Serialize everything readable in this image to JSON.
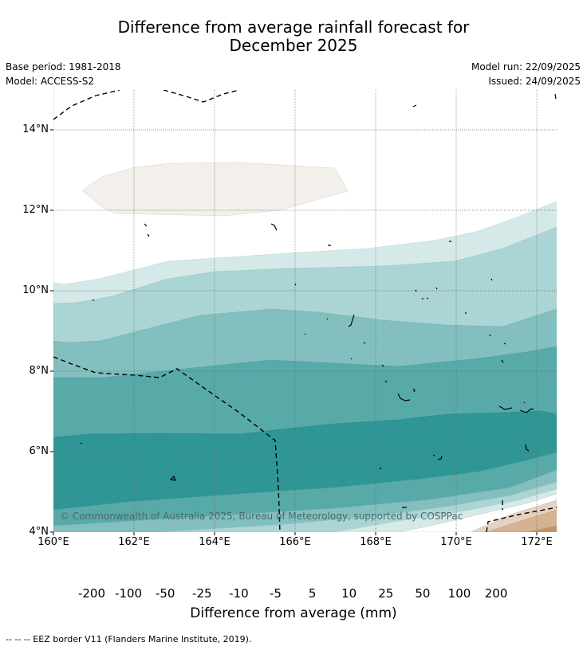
{
  "title_line1": "Difference from average rainfall forecast for",
  "title_line2": "December 2025",
  "base_period": "Base period: 1981-2018",
  "model": "Model: ACCESS-S2",
  "model_run": "Model run: 22/09/2025",
  "issued": "Issued: 24/09/2025",
  "lat_labels": [
    "14°N",
    "12°N",
    "10°N",
    "8°N",
    "6°N",
    "4°N"
  ],
  "lon_labels": [
    "160°E",
    "162°E",
    "164°E",
    "166°E",
    "168°E",
    "170°E",
    "172°E"
  ],
  "copyright": "© Commonwealth of Australia 2025, Bureau of Meteorology, supported by COSPPac",
  "colorbar": {
    "title": "Difference from average (mm)",
    "ticks": [
      "-200",
      "-100",
      "-50",
      "-25",
      "-10",
      "-5",
      "5",
      "10",
      "25",
      "50",
      "100",
      "200"
    ],
    "colors": [
      "#9c6430",
      "#b07840",
      "#c29468",
      "#d4b292",
      "#e5d2c0",
      "#f3efea",
      "#ffffff",
      "#d4e9e8",
      "#aad5d4",
      "#83bfbe",
      "#58aaa9",
      "#2f9695",
      "#237e7d"
    ]
  },
  "footnote": "--  --  -- EEZ border V11 (Flanders Marine Institute, 2019)."
}
